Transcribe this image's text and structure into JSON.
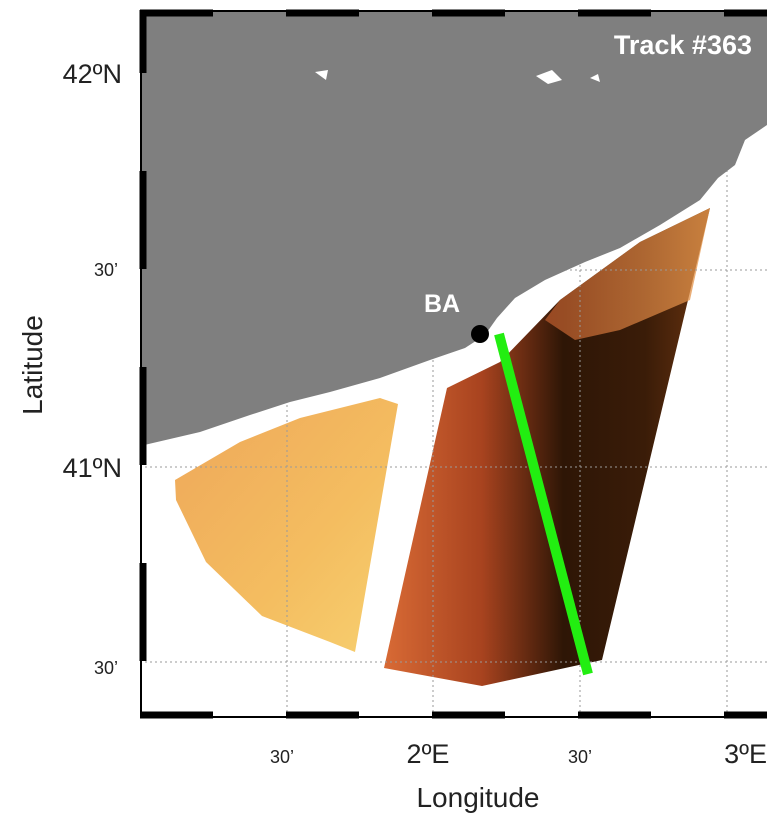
{
  "map": {
    "title": "Track #363",
    "station_label": "BA",
    "y_axis_label": "Latitude",
    "x_axis_label": "Longitude",
    "lat_ticks": [
      "42ºN",
      "30’",
      "41ºN",
      "30’"
    ],
    "lon_ticks": [
      "30’",
      "2ºE",
      "30’",
      "3ºE"
    ]
  }
}
